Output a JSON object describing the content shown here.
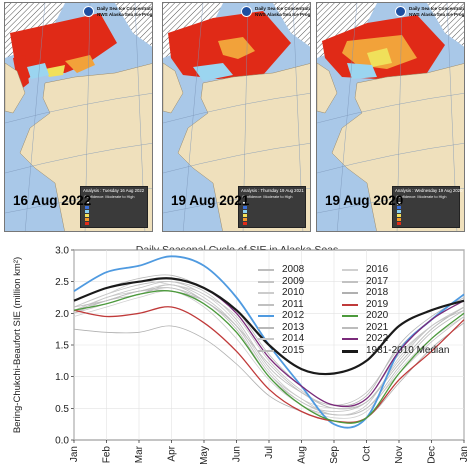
{
  "maps": [
    {
      "date": "16 Aug 2022",
      "header_title": "Daily Sea Ice Concentration Analysis",
      "header_sub": "NWS Alaska Sea Ice Program",
      "analysis": "Analysis : Tuesday 16 Aug 2022",
      "confidence": "Confidence: Moderate to High"
    },
    {
      "date": "19 Aug 2021",
      "header_title": "Daily Sea Ice Concentration Analysis",
      "header_sub": "NWS Alaska Sea Ice Program",
      "analysis": "Analysis : Thursday 19 Aug 2021",
      "confidence": "Confidence: Moderate to High"
    },
    {
      "date": "19 Aug 2020",
      "header_title": "Daily Sea Ice Concentration Analysis",
      "header_sub": "NWS Alaska Sea Ice Program",
      "analysis": "Analysis : Wednesday 19 Aug 2020",
      "confidence": "Confidence: Moderate to High"
    }
  ],
  "map_legend_colors": [
    "#f0f0f0",
    "#3a6fd8",
    "#8bd0f0",
    "#f3e25a",
    "#f59a2a",
    "#e32a18"
  ],
  "chart_data": {
    "type": "line",
    "title": "Daily Seasonal Cycle of SIE in Alaska Seas",
    "ylabel": "Bering-Chukchi-Beaufort SIE (million km²)",
    "xlabel": "",
    "ylim": [
      0,
      3.0
    ],
    "yticks": [
      "0.0",
      "0.5",
      "1.0",
      "1.5",
      "2.0",
      "2.5",
      "3.0"
    ],
    "months": [
      "Jan",
      "Feb",
      "Mar",
      "Apr",
      "May",
      "Jun",
      "Jul",
      "Aug",
      "Sep",
      "Oct",
      "Nov",
      "Dec",
      "Jan"
    ],
    "grid": true,
    "legend_position": "top-right",
    "series": [
      {
        "name": "2008",
        "color": "#bdbdbd",
        "values": [
          2.1,
          2.3,
          2.45,
          2.5,
          2.35,
          1.9,
          1.15,
          0.75,
          0.55,
          0.75,
          1.45,
          1.9,
          2.2
        ]
      },
      {
        "name": "2009",
        "color": "#c4c4c4",
        "values": [
          2.05,
          2.25,
          2.4,
          2.5,
          2.3,
          1.95,
          1.25,
          0.78,
          0.5,
          0.65,
          1.35,
          1.8,
          2.1
        ]
      },
      {
        "name": "2010",
        "color": "#cccccc",
        "values": [
          2.1,
          2.3,
          2.5,
          2.45,
          2.3,
          1.85,
          1.1,
          0.65,
          0.5,
          0.6,
          1.2,
          1.75,
          2.1
        ]
      },
      {
        "name": "2011",
        "color": "#c0c0c0",
        "values": [
          2.0,
          2.2,
          2.3,
          2.45,
          2.2,
          1.8,
          1.05,
          0.6,
          0.45,
          0.6,
          1.25,
          1.8,
          2.05
        ]
      },
      {
        "name": "2012",
        "color": "#4f9ae0",
        "values": [
          2.35,
          2.65,
          2.75,
          2.9,
          2.75,
          2.25,
          1.5,
          0.85,
          0.25,
          0.35,
          1.4,
          1.9,
          2.3
        ]
      },
      {
        "name": "2013",
        "color": "#b8b8b8",
        "values": [
          2.2,
          2.4,
          2.55,
          2.6,
          2.4,
          2.05,
          1.35,
          0.85,
          0.55,
          0.7,
          1.5,
          1.95,
          2.25
        ]
      },
      {
        "name": "2014",
        "color": "#c8c8c8",
        "values": [
          2.0,
          2.25,
          2.35,
          2.45,
          2.25,
          1.8,
          1.05,
          0.65,
          0.4,
          0.55,
          1.3,
          1.8,
          2.1
        ]
      },
      {
        "name": "2015",
        "color": "#bababa",
        "values": [
          2.05,
          2.2,
          2.35,
          2.4,
          2.2,
          1.75,
          1.0,
          0.55,
          0.4,
          0.5,
          1.15,
          1.7,
          2.05
        ]
      },
      {
        "name": "2016",
        "color": "#d0d0d0",
        "values": [
          1.95,
          2.1,
          2.25,
          2.35,
          2.1,
          1.6,
          0.95,
          0.55,
          0.35,
          0.45,
          1.1,
          1.6,
          1.95
        ]
      },
      {
        "name": "2017",
        "color": "#c2c2c2",
        "values": [
          2.0,
          2.15,
          2.3,
          2.4,
          2.15,
          1.7,
          1.0,
          0.6,
          0.4,
          0.5,
          1.05,
          1.55,
          1.95
        ]
      },
      {
        "name": "2018",
        "color": "#b0b0b0",
        "values": [
          1.75,
          1.7,
          1.7,
          1.8,
          1.6,
          1.2,
          0.7,
          0.45,
          0.3,
          0.35,
          0.9,
          1.45,
          1.85
        ]
      },
      {
        "name": "2019",
        "color": "#c03a3a",
        "values": [
          2.05,
          1.95,
          2.0,
          2.1,
          1.85,
          1.4,
          0.8,
          0.45,
          0.3,
          0.35,
          0.95,
          1.4,
          1.9
        ]
      },
      {
        "name": "2020",
        "color": "#4c9a3c",
        "values": [
          2.05,
          2.15,
          2.3,
          2.35,
          2.15,
          1.7,
          1.0,
          0.55,
          0.3,
          0.35,
          1.05,
          1.6,
          2.0
        ]
      },
      {
        "name": "2021",
        "color": "#bcbcbc",
        "values": [
          2.1,
          2.2,
          2.35,
          2.35,
          2.2,
          1.8,
          1.2,
          0.75,
          0.5,
          0.6,
          1.2,
          1.75,
          2.1
        ]
      },
      {
        "name": "2022",
        "color": "#7a2a7a",
        "values": [
          2.2,
          2.4,
          2.5,
          2.55,
          2.4,
          2.0,
          1.3,
          0.85,
          0.55,
          0.65,
          1.4,
          1.9,
          2.2
        ]
      },
      {
        "name": "1981-2010 Median",
        "color": "#1a1a1a",
        "values": [
          2.2,
          2.4,
          2.5,
          2.55,
          2.4,
          2.05,
          1.5,
          1.12,
          1.05,
          1.25,
          1.8,
          2.05,
          2.2
        ]
      }
    ]
  }
}
